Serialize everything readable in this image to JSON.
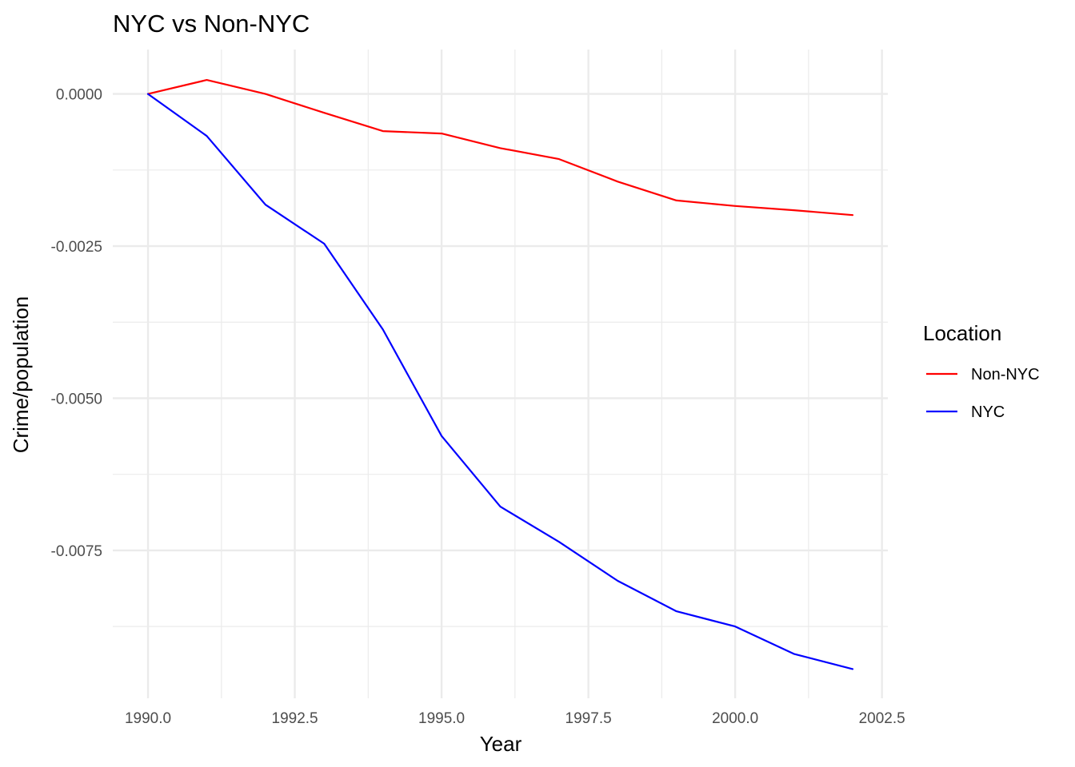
{
  "chart_data": {
    "type": "line",
    "title": "NYC vs Non-NYC",
    "xlabel": "Year",
    "ylabel": "Crime/population",
    "xlim": [
      1989.4,
      2002.6
    ],
    "ylim": [
      -0.00993,
      0.00073
    ],
    "x_ticks": [
      1990,
      1992.5,
      1995,
      1997.5,
      2000,
      2002.5
    ],
    "x_tick_labels": [
      "1990.0",
      "1992.5",
      "1995.0",
      "1997.5",
      "2000.0",
      "2002.5"
    ],
    "y_ticks": [
      0,
      -0.0025,
      -0.005,
      -0.0075
    ],
    "y_tick_labels": [
      "0.0000",
      "-0.0025",
      "-0.0050",
      "-0.0075"
    ],
    "grid": true,
    "legend": {
      "title": "Location",
      "position": "right"
    },
    "x": [
      1990,
      1991,
      1992,
      1993,
      1994,
      1995,
      1996,
      1997,
      1998,
      1999,
      2000,
      2001,
      2002
    ],
    "series": [
      {
        "name": "Non-NYC",
        "color": "#ff0000",
        "values": [
          0,
          0.00023,
          0,
          -0.00031,
          -0.00061,
          -0.00065,
          -0.00089,
          -0.00107,
          -0.00144,
          -0.00175,
          -0.00184,
          -0.00191,
          -0.00199
        ]
      },
      {
        "name": "NYC",
        "color": "#0000ff",
        "values": [
          0,
          -0.00069,
          -0.00182,
          -0.00246,
          -0.00387,
          -0.00562,
          -0.00678,
          -0.00736,
          -0.008,
          -0.0085,
          -0.00875,
          -0.0092,
          -0.00945
        ]
      }
    ]
  }
}
